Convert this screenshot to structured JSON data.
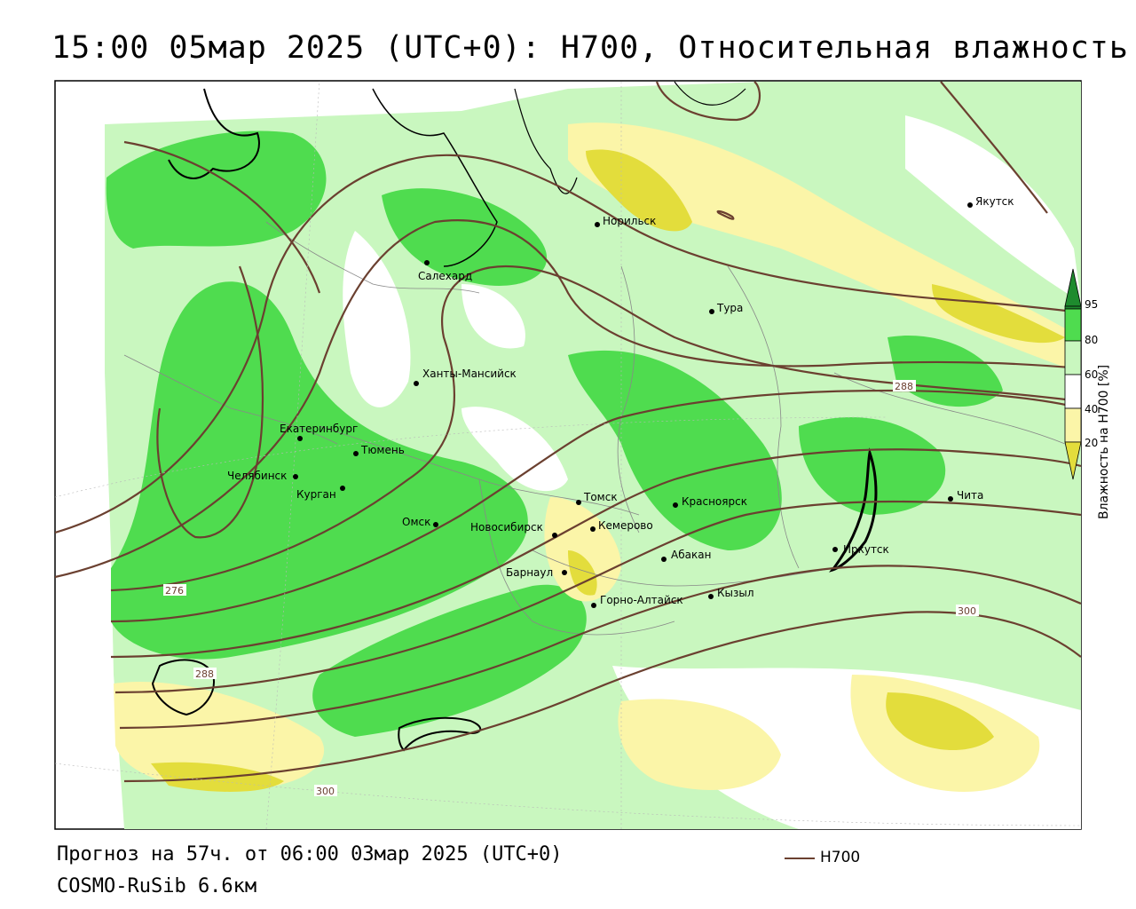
{
  "title": "15:00 05мар 2025 (UTC+0): H700, Относительная влажность",
  "footer": {
    "forecast": "Прогноз на 57ч. от 06:00 03мар 2025 (UTC+0)",
    "model": "COSMO-RuSib 6.6км",
    "legend_line_label": "H700",
    "legend_line_color": "#6b4030"
  },
  "colorbar": {
    "title": "Влажность на H700 [%]",
    "ticks": [
      "95",
      "80",
      "60",
      "40",
      "20"
    ],
    "colors": {
      "c95": "#1e8b2e",
      "c80": "#4fdc4f",
      "c60": "#c9f7bf",
      "c40": "#ffffff",
      "c20": "#fbf5a8",
      "c0": "#e3dd3c"
    }
  },
  "cities": [
    {
      "name": "Норильск"
    },
    {
      "name": "Якутск"
    },
    {
      "name": "Салехард"
    },
    {
      "name": "Тура"
    },
    {
      "name": "Ханты-Мансийск"
    },
    {
      "name": "Екатеринбург"
    },
    {
      "name": "Тюмень"
    },
    {
      "name": "Челябинск"
    },
    {
      "name": "Курган"
    },
    {
      "name": "Омск"
    },
    {
      "name": "Новосибирск"
    },
    {
      "name": "Томск"
    },
    {
      "name": "Кемерово"
    },
    {
      "name": "Красноярск"
    },
    {
      "name": "Абакан"
    },
    {
      "name": "Барнаул"
    },
    {
      "name": "Горно-Алтайск"
    },
    {
      "name": "Кызыл"
    },
    {
      "name": "Иркутск"
    },
    {
      "name": "Чита"
    }
  ],
  "contour_labels": [
    "276",
    "288",
    "288",
    "300",
    "300"
  ]
}
